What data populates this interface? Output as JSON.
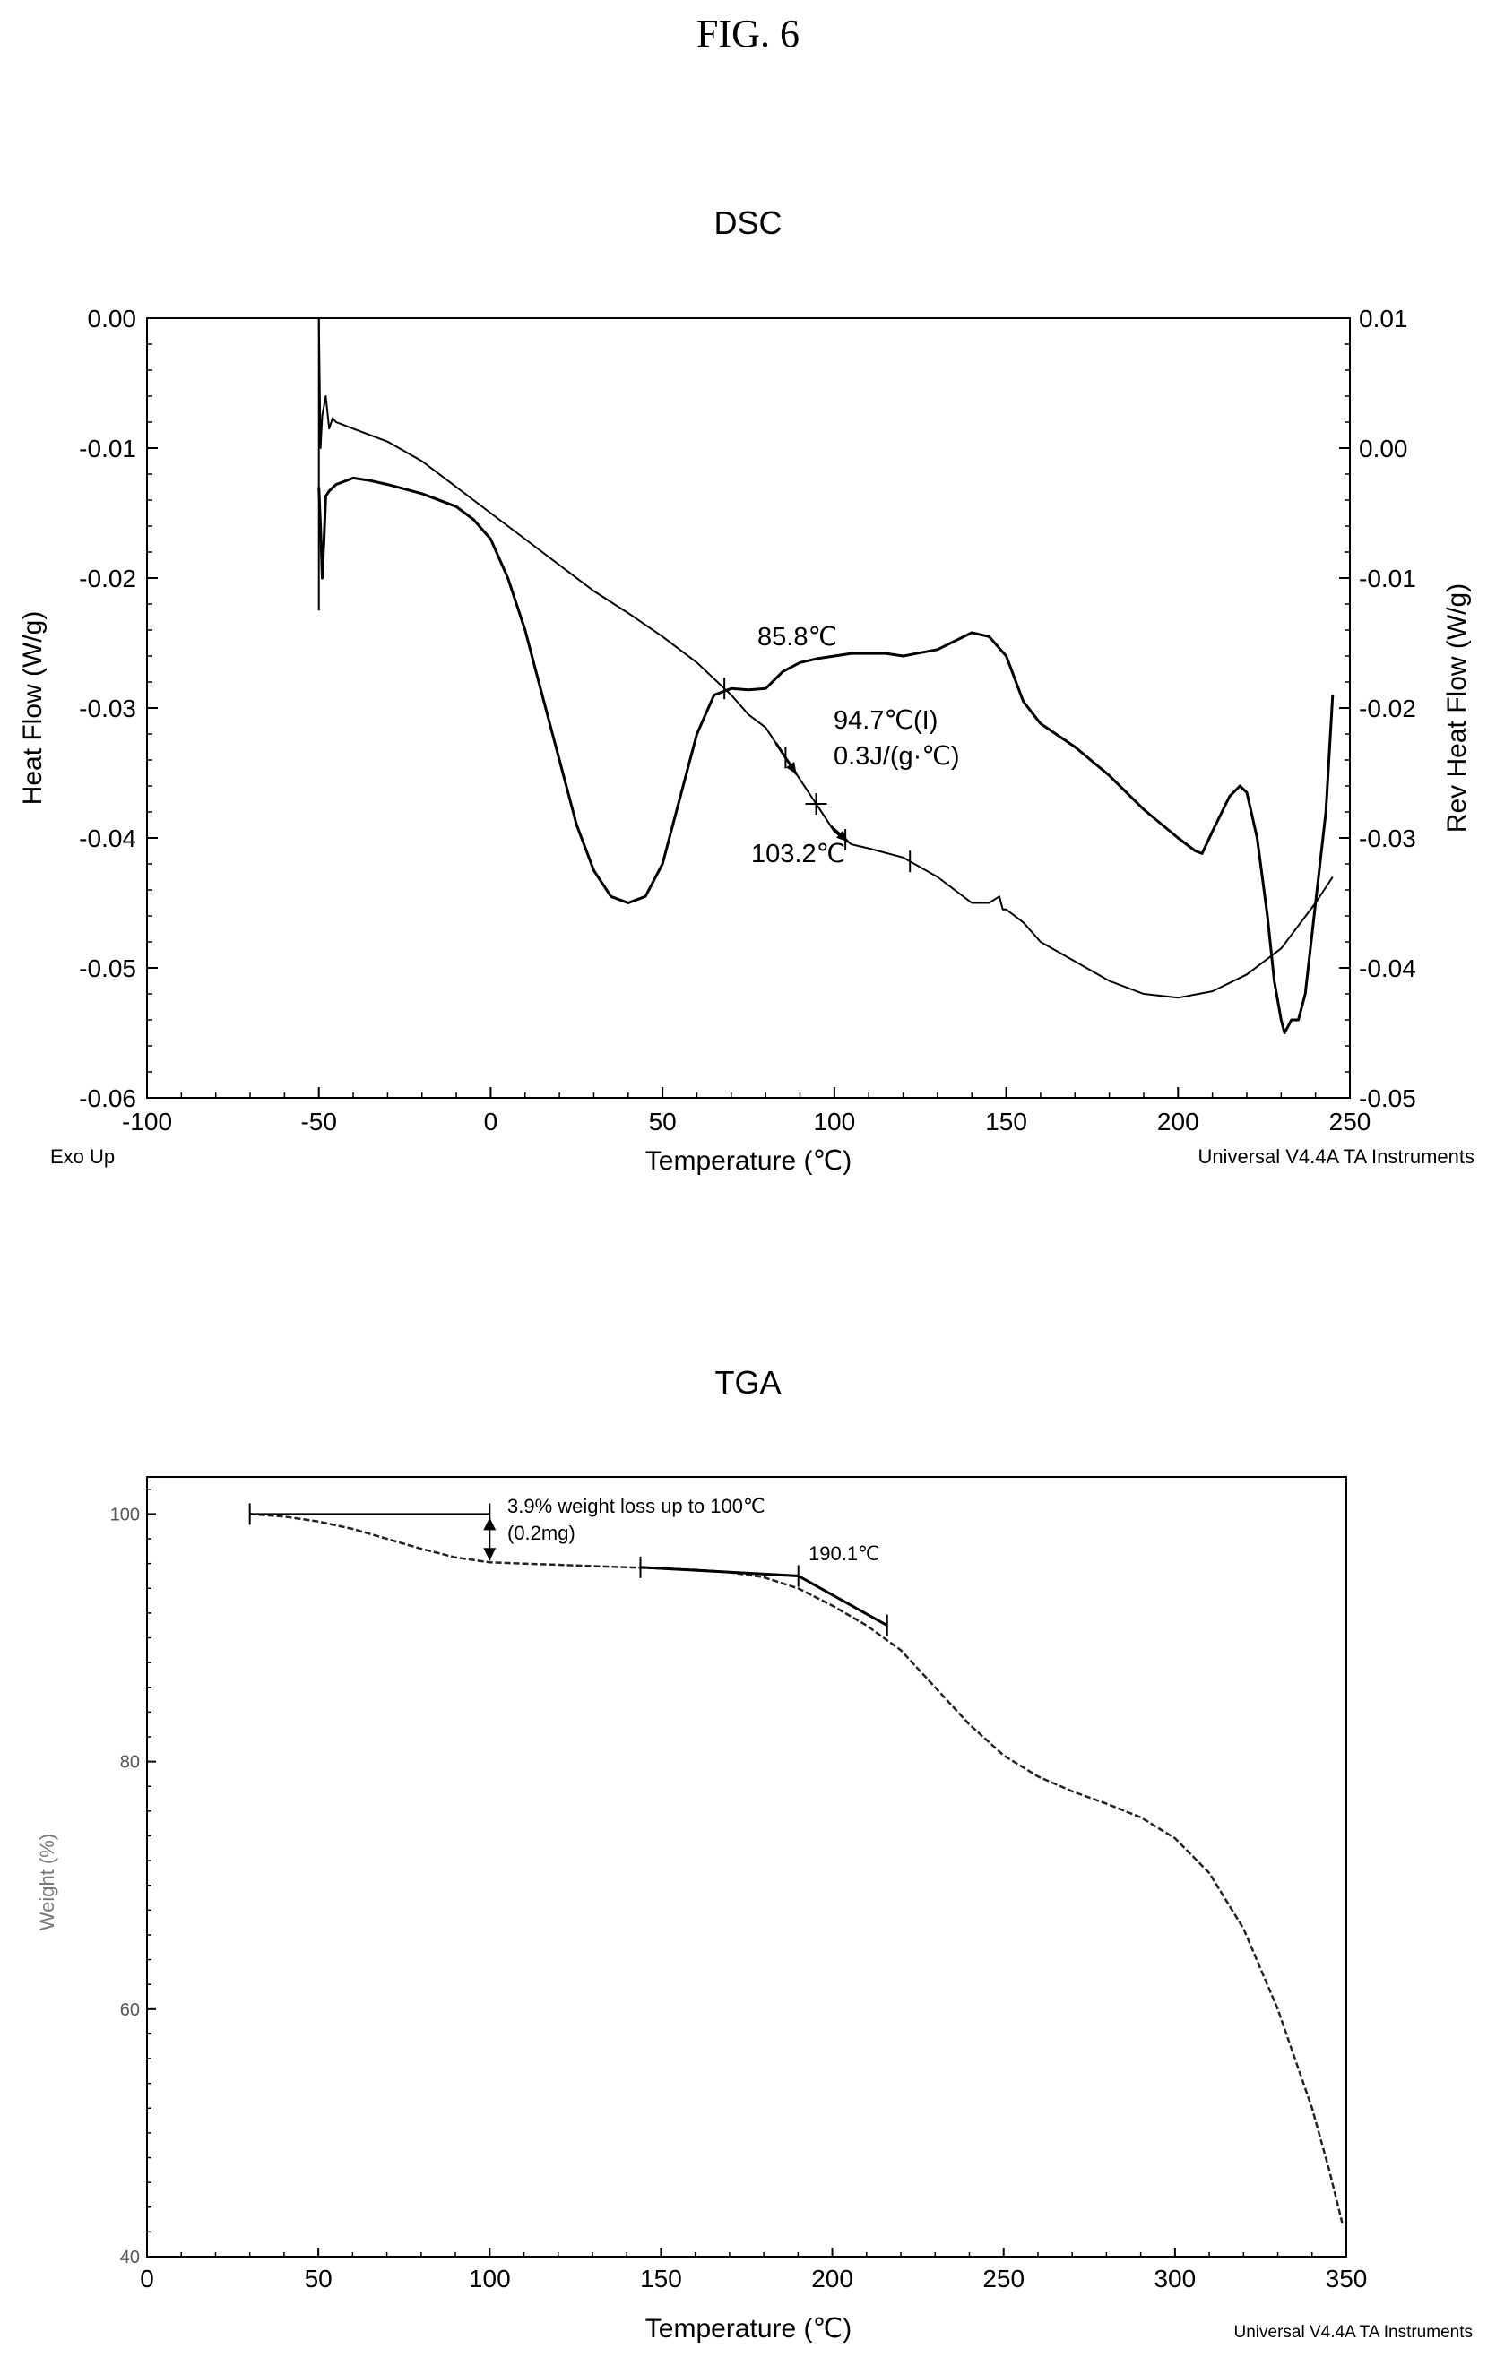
{
  "figure_title": "FIG. 6",
  "chart_data": [
    {
      "type": "line",
      "title": "DSC",
      "xlabel": "Temperature (℃)",
      "ylabel": "Heat Flow (W/g)",
      "y2label": "Rev Heat Flow (W/g)",
      "xlim": [
        -100,
        250
      ],
      "ylim": [
        -0.06,
        0.0
      ],
      "y2lim": [
        -0.05,
        0.01
      ],
      "xticks": [
        "-100",
        "-50",
        "0",
        "50",
        "100",
        "150",
        "200",
        "250"
      ],
      "yticks": [
        "0.00",
        "-0.01",
        "-0.02",
        "-0.03",
        "-0.04",
        "-0.05",
        "-0.06"
      ],
      "y2ticks": [
        "0.01",
        "0.00",
        "-0.01",
        "-0.02",
        "-0.03",
        "-0.04",
        "-0.05"
      ],
      "footer_left": "Exo Up",
      "footer_right": "Universal V4.4A TA Instruments",
      "grid": false,
      "annotations": [
        "85.8℃",
        "94.7℃(I)",
        "0.3J/(g·℃)",
        "103.2℃"
      ],
      "series": [
        {
          "axis": "left",
          "x": [
            -50,
            -49.5,
            -49,
            -48.5,
            -48,
            -47,
            -45,
            -40,
            -35,
            -30,
            -20,
            -10,
            -5,
            0,
            5,
            10,
            15,
            20,
            25,
            30,
            35,
            40,
            45,
            50,
            55,
            60,
            65,
            70,
            75,
            80,
            85,
            90,
            95,
            100,
            105,
            110,
            115,
            120,
            130,
            140,
            145,
            150,
            155,
            160,
            170,
            180,
            190,
            200,
            205,
            207,
            210,
            215,
            218,
            220,
            223,
            226,
            228,
            230,
            231,
            232,
            233,
            235,
            237,
            240,
            243,
            245
          ],
          "y": [
            -0.013,
            -0.016,
            -0.02,
            -0.017,
            -0.0137,
            -0.0133,
            -0.0128,
            -0.0123,
            -0.0125,
            -0.0128,
            -0.0135,
            -0.0145,
            -0.0155,
            -0.017,
            -0.02,
            -0.024,
            -0.029,
            -0.034,
            -0.039,
            -0.0425,
            -0.0445,
            -0.045,
            -0.0445,
            -0.042,
            -0.037,
            -0.032,
            -0.029,
            -0.0285,
            -0.0286,
            -0.0285,
            -0.0272,
            -0.0265,
            -0.0262,
            -0.026,
            -0.0258,
            -0.0258,
            -0.0258,
            -0.026,
            -0.0255,
            -0.0242,
            -0.0245,
            -0.026,
            -0.0295,
            -0.0312,
            -0.033,
            -0.0352,
            -0.0378,
            -0.04,
            -0.041,
            -0.0412,
            -0.0395,
            -0.0368,
            -0.036,
            -0.0365,
            -0.04,
            -0.046,
            -0.051,
            -0.054,
            -0.055,
            -0.0545,
            -0.054,
            -0.054,
            -0.052,
            -0.045,
            -0.038,
            -0.029
          ]
        },
        {
          "axis": "right",
          "x": [
            -50,
            -49.5,
            -49,
            -48,
            -47,
            -46,
            -45,
            -40,
            -30,
            -20,
            -10,
            0,
            10,
            20,
            30,
            40,
            50,
            60,
            70,
            75,
            80,
            85,
            90,
            95,
            100,
            105,
            110,
            120,
            130,
            140,
            145,
            148,
            149,
            150,
            155,
            160,
            170,
            180,
            190,
            200,
            210,
            220,
            230,
            240,
            245
          ],
          "y": [
            0.01,
            0.0,
            0.0025,
            0.004,
            0.0015,
            0.0023,
            0.002,
            0.0015,
            0.0005,
            -0.001,
            -0.003,
            -0.005,
            -0.007,
            -0.009,
            -0.011,
            -0.0127,
            -0.0145,
            -0.0165,
            -0.019,
            -0.0205,
            -0.0215,
            -0.0235,
            -0.0255,
            -0.0275,
            -0.0295,
            -0.0305,
            -0.0308,
            -0.0315,
            -0.033,
            -0.035,
            -0.035,
            -0.0345,
            -0.0355,
            -0.0355,
            -0.0365,
            -0.038,
            -0.0395,
            -0.041,
            -0.042,
            -0.0423,
            -0.0418,
            -0.0405,
            -0.0385,
            -0.035,
            -0.033
          ]
        }
      ]
    },
    {
      "type": "line",
      "title": "TGA",
      "xlabel": "Temperature (℃)",
      "ylabel": "Weight (%)",
      "xlim": [
        0,
        350
      ],
      "ylim": [
        40,
        100
      ],
      "xticks": [
        "0",
        "50",
        "100",
        "150",
        "200",
        "250",
        "300",
        "350"
      ],
      "yticks": [
        "100",
        "80",
        "60",
        "40"
      ],
      "footer_right": "Universal V4.4A TA Instruments",
      "grid": false,
      "annotations": [
        "3.9% weight loss up to 100℃",
        "(0.2mg)",
        "190.1℃"
      ],
      "series": [
        {
          "x": [
            30,
            40,
            50,
            60,
            70,
            80,
            90,
            100,
            110,
            120,
            130,
            140,
            150,
            160,
            170,
            180,
            190,
            200,
            210,
            220,
            230,
            240,
            250,
            260,
            270,
            280,
            290,
            300,
            310,
            320,
            330,
            340,
            345,
            349
          ],
          "y": [
            100,
            99.8,
            99.4,
            98.8,
            98.0,
            97.2,
            96.5,
            96.1,
            96.0,
            95.9,
            95.8,
            95.7,
            95.6,
            95.5,
            95.3,
            94.9,
            94.0,
            92.6,
            91.0,
            89.0,
            86.0,
            83.0,
            80.5,
            78.8,
            77.6,
            76.6,
            75.5,
            73.8,
            71.0,
            66.5,
            60.0,
            52.0,
            47.0,
            42.5
          ]
        }
      ]
    }
  ]
}
